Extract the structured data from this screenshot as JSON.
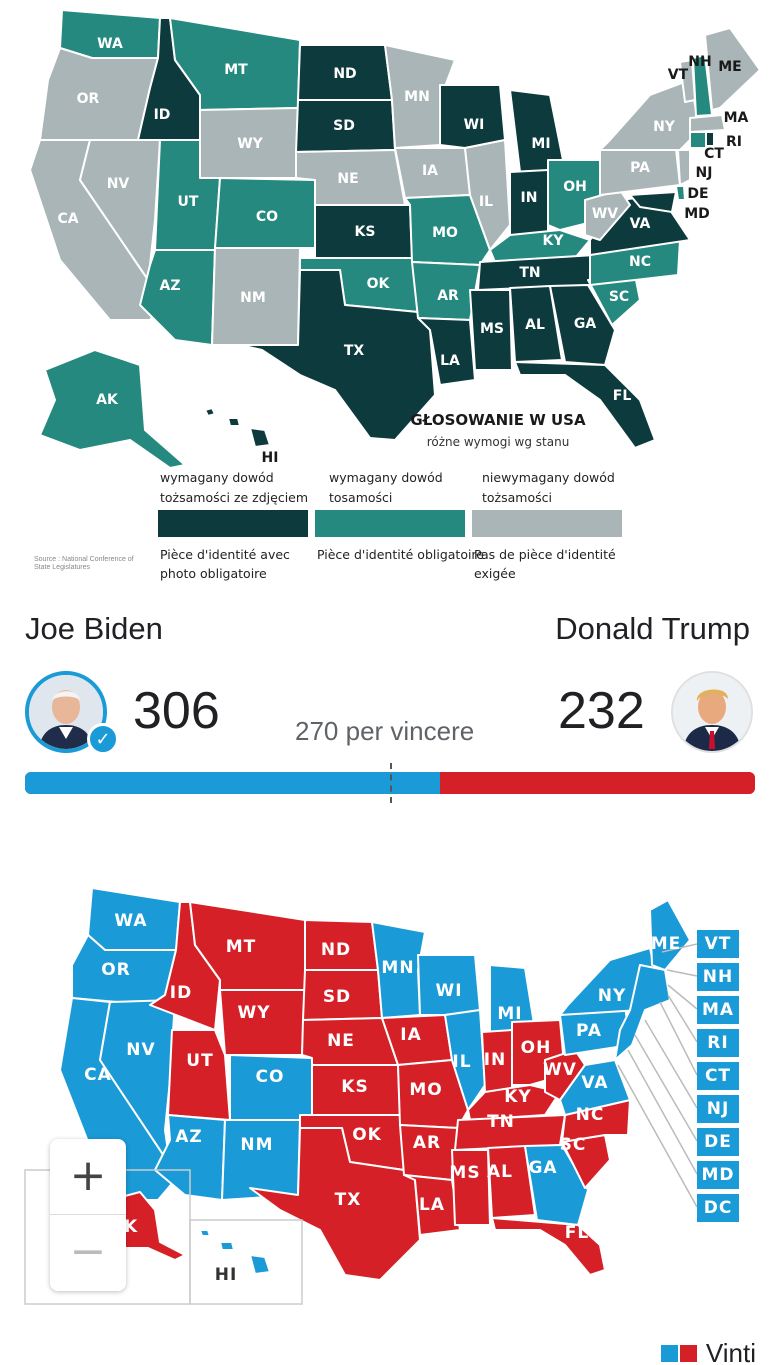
{
  "id_map": {
    "title": "GŁOSOWANIE W USA",
    "subtitle": "różne wymogi wg stanu",
    "colors": {
      "photo_id": "#0d3a3c",
      "id": "#25897f",
      "no_id": "#a9b5b7",
      "border": "#ffffff"
    },
    "states": {
      "WA": "WA",
      "OR": "OR",
      "CA": "CA",
      "ID": "ID",
      "NV": "NV",
      "MT": "MT",
      "WY": "WY",
      "UT": "UT",
      "AZ": "AZ",
      "CO": "CO",
      "NM": "NM",
      "ND": "ND",
      "SD": "SD",
      "NE": "NE",
      "KS": "KS",
      "OK": "OK",
      "TX": "TX",
      "MN": "MN",
      "IA": "IA",
      "MO": "MO",
      "AR": "AR",
      "LA": "LA",
      "WI": "WI",
      "IL": "IL",
      "MI": "MI",
      "IN": "IN",
      "OH": "OH",
      "KY": "KY",
      "TN": "TN",
      "MS": "MS",
      "AL": "AL",
      "GA": "GA",
      "FL": "FL",
      "SC": "SC",
      "NC": "NC",
      "VA": "VA",
      "WV": "WV",
      "PA": "PA",
      "NY": "NY",
      "VT": "VT",
      "NH": "NH",
      "ME": "ME",
      "MA": "MA",
      "RI": "RI",
      "CT": "CT",
      "NJ": "NJ",
      "DE": "DE",
      "MD": "MD",
      "AK": "AK",
      "HI": "HI"
    },
    "legend": [
      {
        "pl": "wymagany dowód tożsamości ze zdjęciem",
        "fr": "Pièce d'identité avec photo obligatoire"
      },
      {
        "pl": "wymagany dowód tosamości",
        "fr": "Pièce d'identité obligatoire"
      },
      {
        "pl": "niewymagany dowód tożsamości",
        "fr": "Pas de pièce d'identité exigée"
      }
    ],
    "source": "Source : National Conference of State Legislatures"
  },
  "scoreboard": {
    "left_name": "Joe Biden",
    "right_name": "Donald Trump",
    "left_votes": "306",
    "right_votes": "232",
    "to_win": "270 per vincere",
    "left_share": 0.5688,
    "threshold_share": 0.502,
    "colors": {
      "dem": "#1a9ad6",
      "rep": "#d62028"
    }
  },
  "results_map": {
    "colors": {
      "dem": "#1a9ad6",
      "rep": "#d62028"
    },
    "state_labels": [
      "WA",
      "OR",
      "CA",
      "ID",
      "NV",
      "MT",
      "WY",
      "UT",
      "AZ",
      "CO",
      "NM",
      "ND",
      "SD",
      "NE",
      "KS",
      "OK",
      "TX",
      "MN",
      "IA",
      "MO",
      "AR",
      "LA",
      "WI",
      "IL",
      "MI",
      "IN",
      "OH",
      "KY",
      "TN",
      "MS",
      "AL",
      "GA",
      "FL",
      "SC",
      "NC",
      "VA",
      "WV",
      "PA",
      "NY",
      "ME",
      "HI",
      "AK"
    ],
    "ne_boxes": [
      "VT",
      "NH",
      "MA",
      "RI",
      "CT",
      "NJ",
      "DE",
      "MD",
      "DC"
    ],
    "zoom_in": "+",
    "zoom_out": "−",
    "legend_label": "Vinti"
  }
}
